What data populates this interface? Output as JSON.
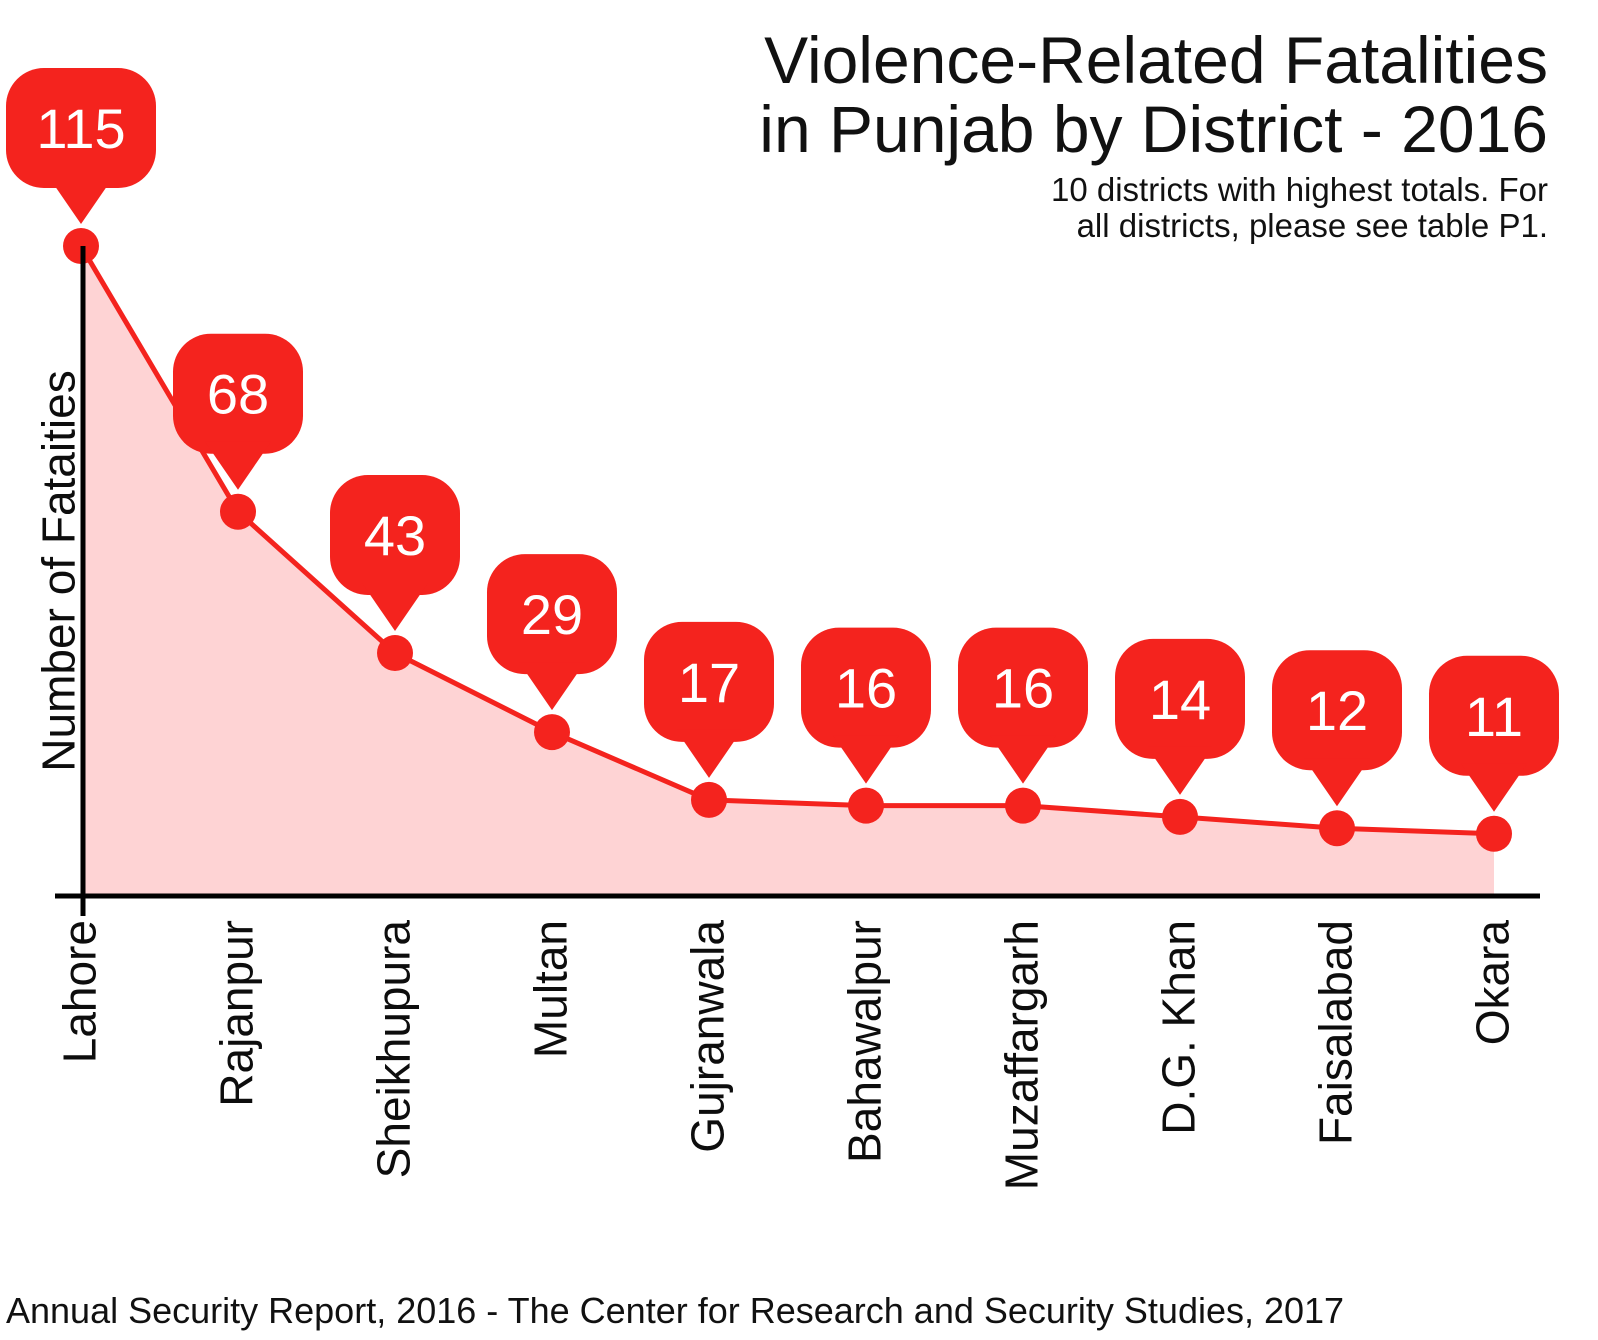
{
  "title": {
    "line1": "Violence-Related Fatalities",
    "line2": "in Punjab by District - 2016"
  },
  "subtitle": {
    "line1": "10 districts with highest totals. For",
    "line2": "all districts, please see table P1."
  },
  "footer": "Annual Security Report, 2016 - The Center for Research and Security Studies, 2017",
  "colors": {
    "accent_red": "#f4231e",
    "area_pink": "#fed3d4",
    "axis_black": "#000000",
    "bubble_text_white": "#ffffff"
  },
  "chart_data": {
    "type": "area",
    "title": "Violence-Related Fatalities in Punjab by District - 2016",
    "subtitle": "10 districts with highest totals. For all districts, please see table P1.",
    "categories": [
      "Lahore",
      "Rajanpur",
      "Sheikhupura",
      "Multan",
      "Gujranwala",
      "Bahawalpur",
      "Muzaffargarh",
      "D.G. Khan",
      "Faisalabad",
      "Okara"
    ],
    "values": [
      115,
      68,
      43,
      29,
      17,
      16,
      16,
      14,
      12,
      11
    ],
    "xlabel": "",
    "ylabel": "Number of Fataities",
    "ylim": [
      0,
      115
    ],
    "grid": false,
    "legend": "none",
    "marker_style": "red pin bubble with value above each point",
    "source_note": "Annual Security Report, 2016 - The Center for Research and Security Studies, 2017"
  }
}
